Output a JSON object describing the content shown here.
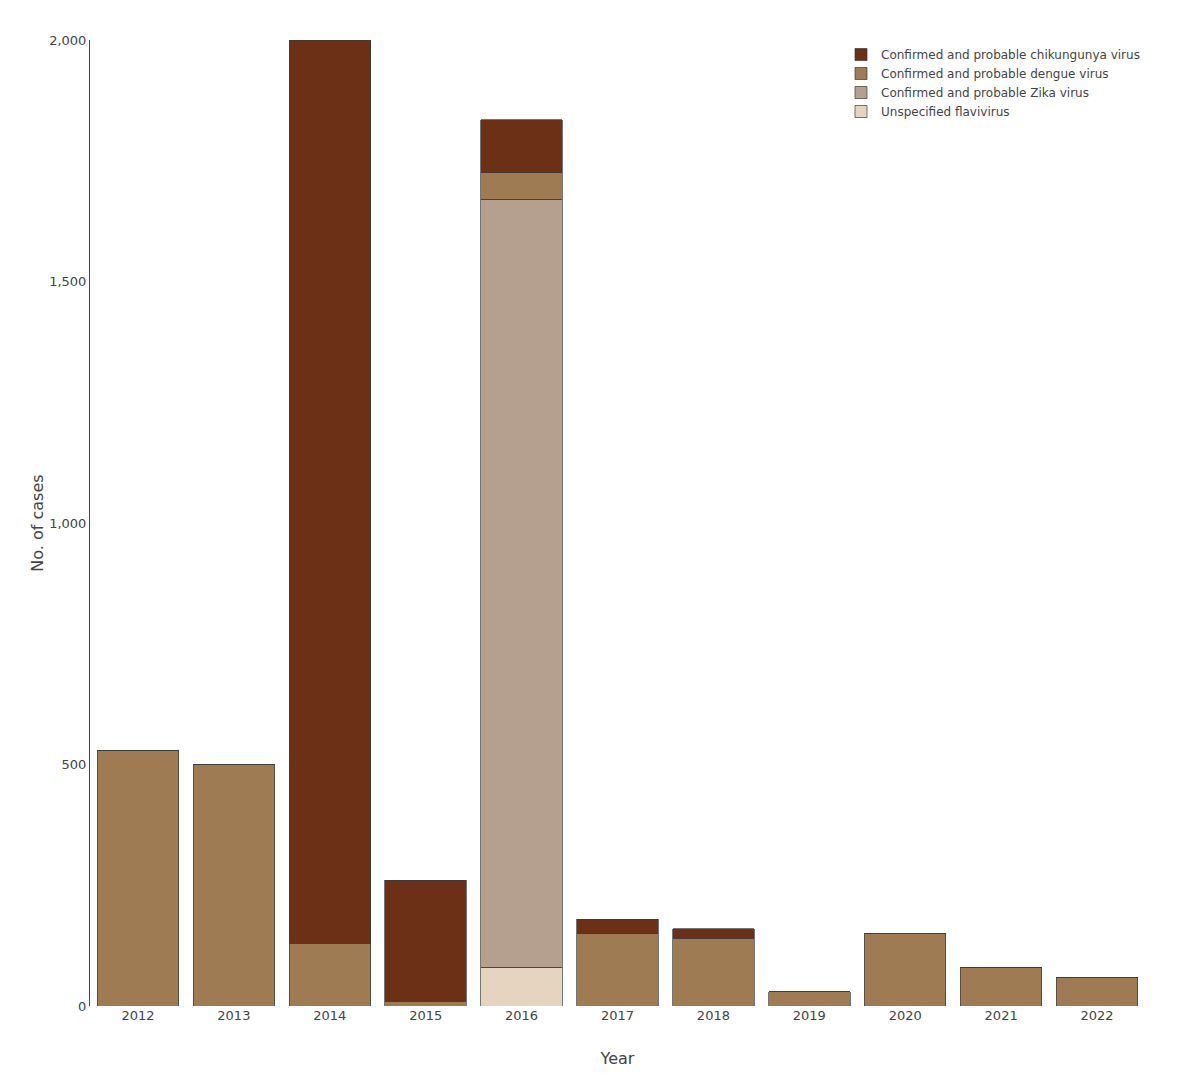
{
  "chart_data": {
    "type": "bar",
    "stacked": true,
    "xlabel": "Year",
    "ylabel": "No. of cases",
    "categories": [
      "2012",
      "2013",
      "2014",
      "2015",
      "2016",
      "2017",
      "2018",
      "2019",
      "2020",
      "2021",
      "2022"
    ],
    "series": [
      {
        "name": "Unspecified flavivirus",
        "color": "#E5D5C0",
        "values": [
          0,
          0,
          0,
          0,
          80,
          0,
          0,
          0,
          0,
          0,
          0
        ]
      },
      {
        "name": "Confirmed and probable Zika virus",
        "color": "#B5A090",
        "values": [
          0,
          0,
          0,
          0,
          1590,
          0,
          0,
          0,
          0,
          0,
          0
        ]
      },
      {
        "name": "Confirmed and probable dengue virus",
        "color": "#9E7B52",
        "values": [
          530,
          500,
          130,
          10,
          55,
          150,
          140,
          30,
          150,
          80,
          60
        ]
      },
      {
        "name": "Confirmed and probable chikungunya virus",
        "color": "#6B3015",
        "values": [
          0,
          0,
          1870,
          250,
          110,
          30,
          20,
          0,
          0,
          0,
          0
        ]
      }
    ],
    "ylim": [
      0,
      2000
    ],
    "yticks": [
      0,
      500,
      {
        "value": 1000,
        "label": "1,000"
      },
      {
        "value": 1500,
        "label": "1,500"
      },
      {
        "value": 2000,
        "label": "2,000"
      }
    ],
    "grid": false,
    "legend": "upper right"
  }
}
